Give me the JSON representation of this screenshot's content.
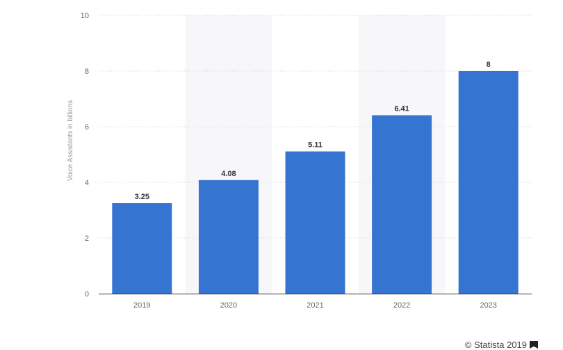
{
  "chart_data": {
    "type": "bar",
    "categories": [
      "2019",
      "2020",
      "2021",
      "2022",
      "2023"
    ],
    "values": [
      3.25,
      4.08,
      5.11,
      6.41,
      8
    ],
    "value_labels": [
      "3.25",
      "4.08",
      "5.11",
      "6.41",
      "8"
    ],
    "title": "",
    "xlabel": "",
    "ylabel": "Voice Assistants in billions",
    "ylim": [
      0,
      10
    ],
    "yticks": [
      0,
      2,
      4,
      6,
      8,
      10
    ],
    "grid": true,
    "bar_color": "#3574d1",
    "band_color": "#f7f7fa",
    "shaded_categories": [
      "2020",
      "2022"
    ]
  },
  "footer": {
    "credit": "© Statista 2019",
    "credit_icon": "flag-icon"
  }
}
